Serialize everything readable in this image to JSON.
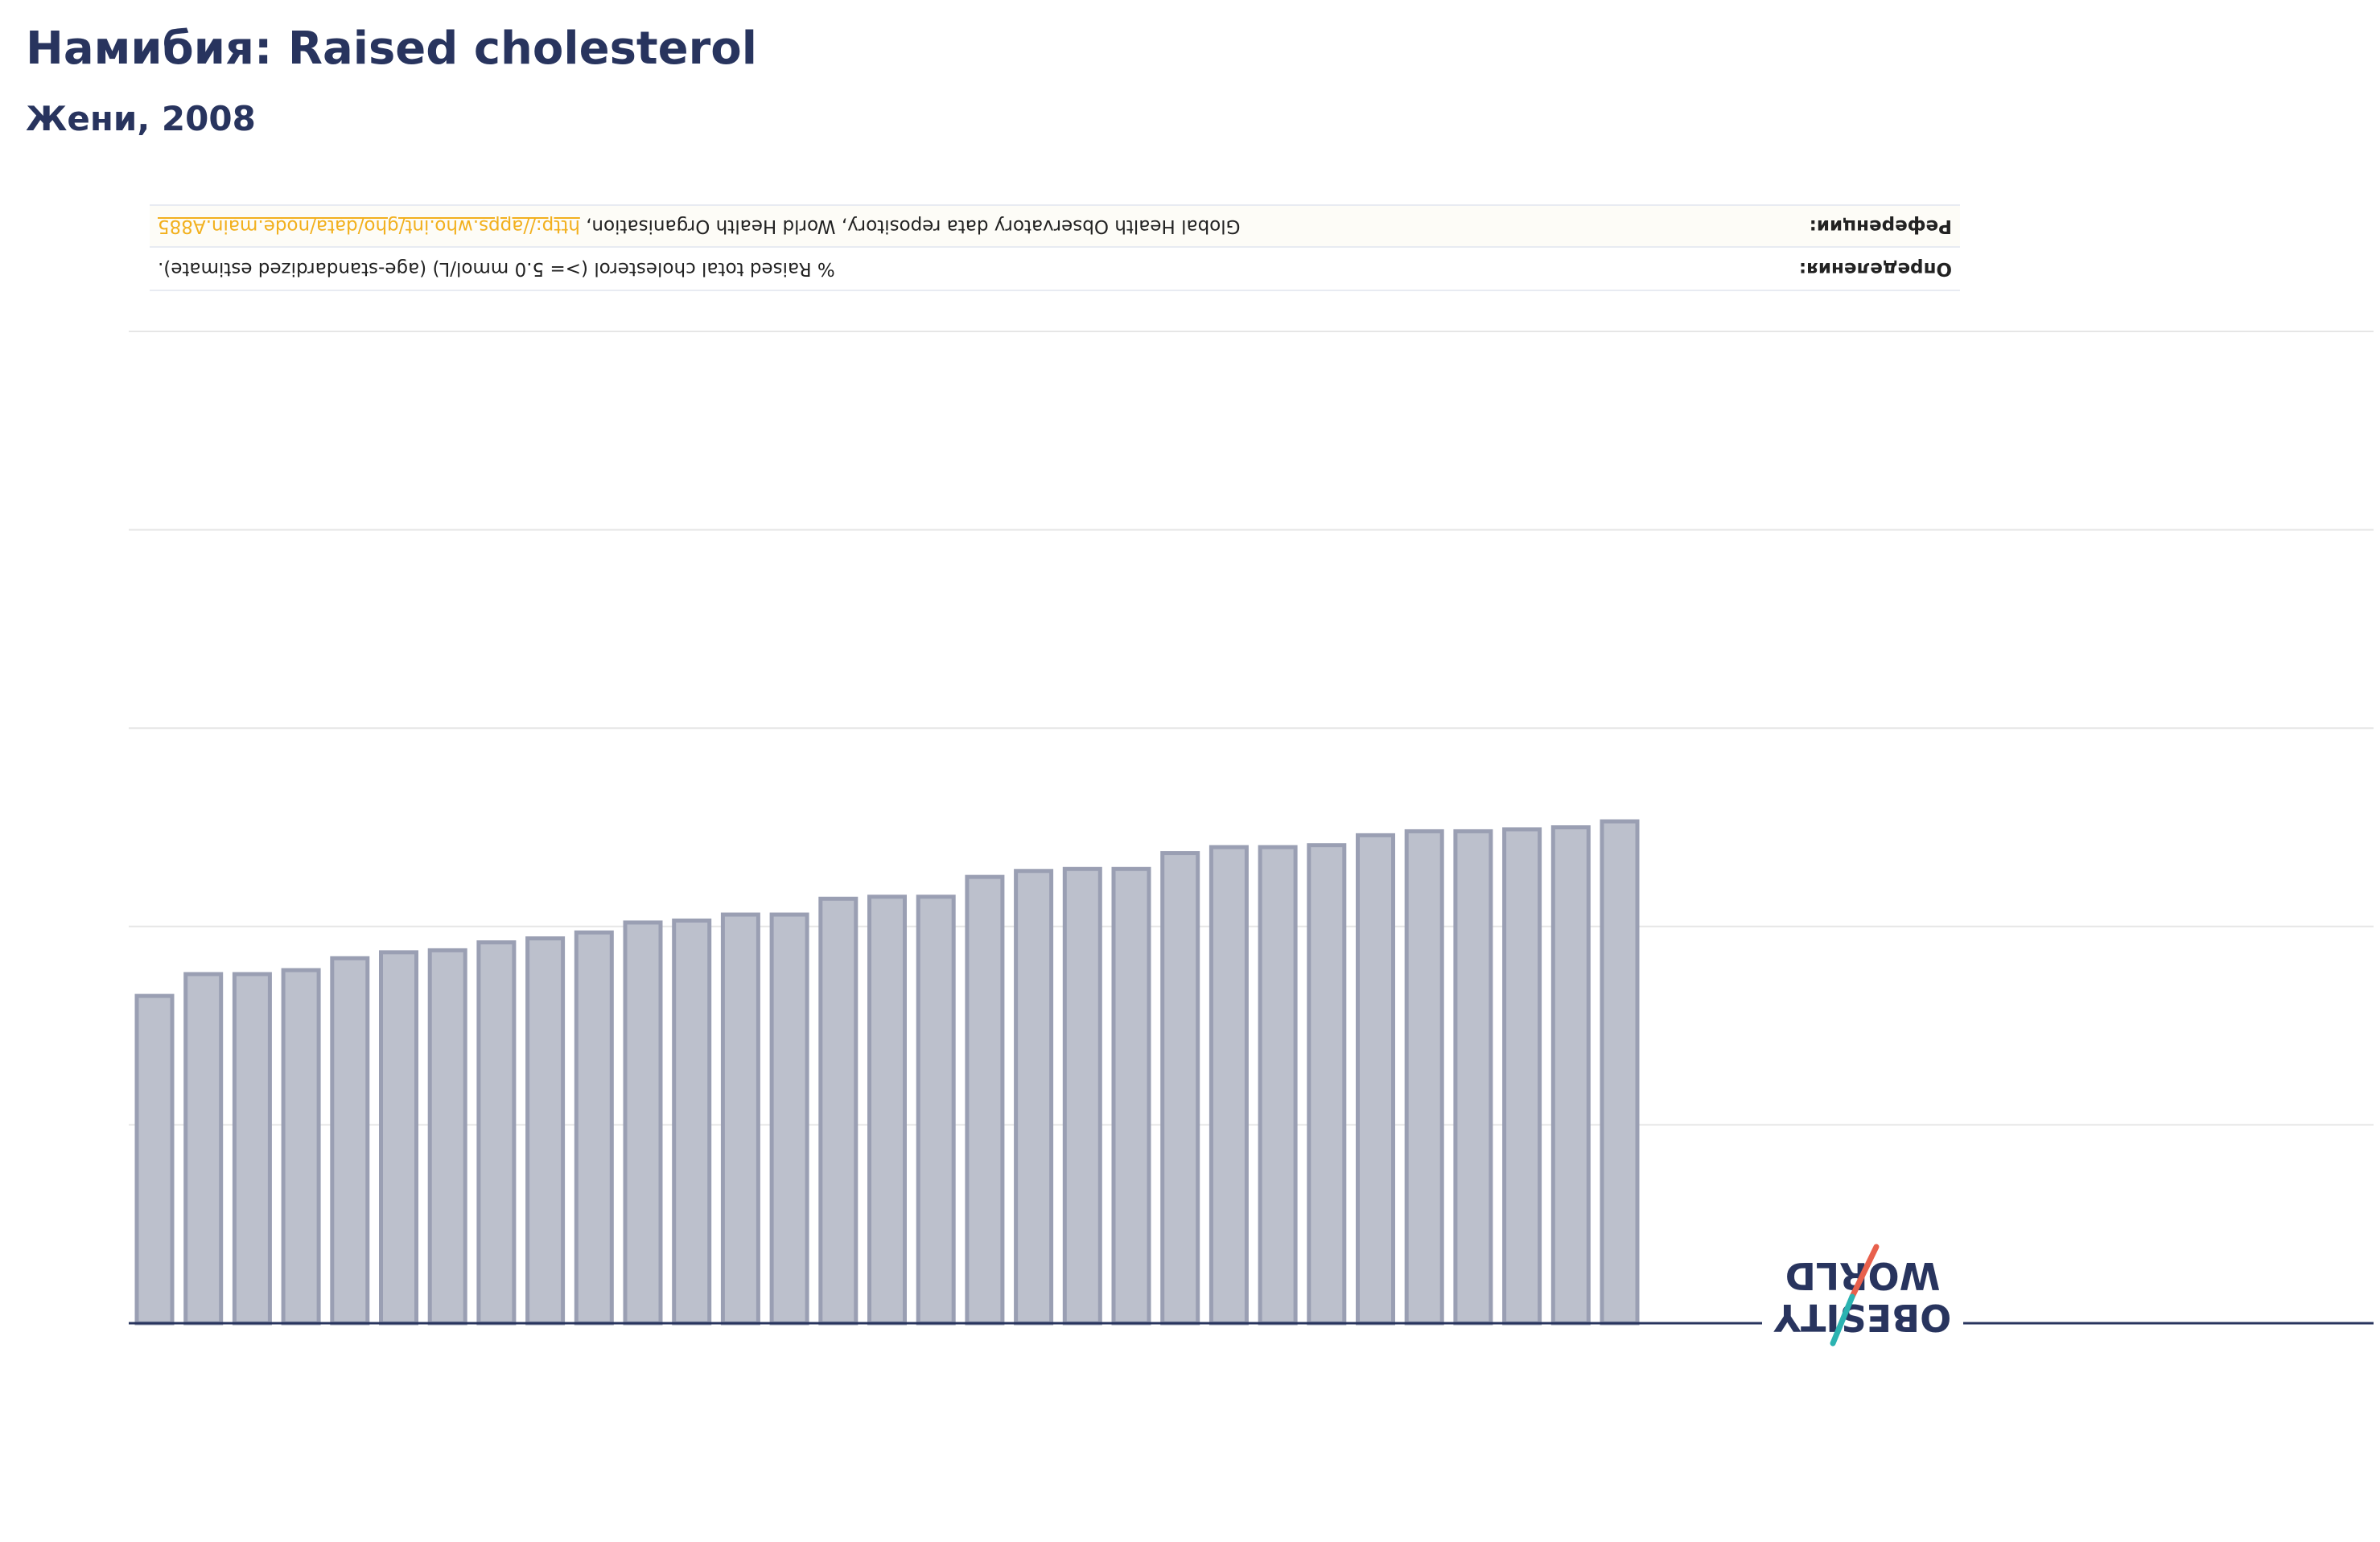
{
  "header": {
    "title": "Намибия: Raised cholesterol",
    "subtitle": "Жени, 2008"
  },
  "info_table": {
    "definition_label": "Определения:",
    "definition_value": "% Raised total cholesterol (>= 5.0 mmol/L) (age-standardized estimate).",
    "reference_label": "Референции:",
    "reference_text": "Global Health Observatory data repository, World Health Organisation, ",
    "reference_link": "http://apps.who.int/gho/data/node.main.A885"
  },
  "logo": {
    "line1": "OBESITY",
    "line2": "WORLD",
    "colors": {
      "navy": "#28345e",
      "red": "#e8604c",
      "teal": "#2bb3b1"
    }
  },
  "colors": {
    "bar_fill": "#bcc0cc",
    "bar_stroke": "#9a9fb3",
    "axis": "#28345e",
    "grid": "#e6e6e6"
  },
  "chart_data": {
    "type": "bar",
    "title": "",
    "xlabel": "",
    "ylabel": "",
    "ylim": [
      0,
      50
    ],
    "grid": true,
    "gridlines": [
      0,
      10,
      20,
      30,
      40,
      50
    ],
    "series": [
      {
        "values": [
          16.5,
          17.6,
          17.6,
          17.8,
          18.4,
          18.7,
          18.8,
          19.2,
          19.4,
          19.7,
          20.2,
          20.3,
          20.6,
          20.6,
          21.4,
          21.5,
          21.5,
          22.5,
          22.8,
          22.9,
          22.9,
          23.7,
          24.0,
          24.0,
          24.1,
          24.6,
          24.8,
          24.8,
          24.9,
          25.0,
          25.3
        ]
      }
    ]
  }
}
